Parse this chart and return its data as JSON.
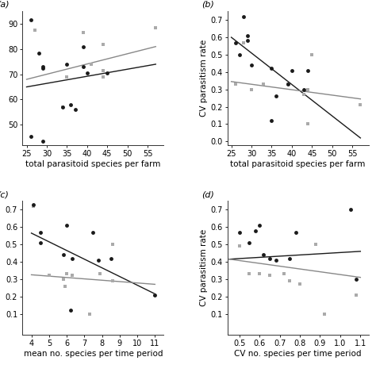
{
  "panel_a": {
    "label": "(a)",
    "black_dots": [
      [
        26,
        45.5
      ],
      [
        26,
        91.5
      ],
      [
        28,
        78.5
      ],
      [
        29,
        43.5
      ],
      [
        29,
        72.5
      ],
      [
        29,
        73.0
      ],
      [
        34,
        57.0
      ],
      [
        35,
        74.0
      ],
      [
        36,
        58.0
      ],
      [
        37,
        56.0
      ],
      [
        39,
        81.0
      ],
      [
        39,
        73.0
      ],
      [
        40,
        70.5
      ],
      [
        45,
        70.5
      ]
    ],
    "gray_squares": [
      [
        27,
        87.5
      ],
      [
        34,
        57.0
      ],
      [
        35,
        69.0
      ],
      [
        39,
        86.5
      ],
      [
        41,
        74.0
      ],
      [
        44,
        82.0
      ],
      [
        44,
        71.5
      ],
      [
        44,
        69.0
      ],
      [
        57,
        88.5
      ]
    ],
    "black_line": [
      [
        25,
        65.0
      ],
      [
        57,
        74.0
      ]
    ],
    "gray_line": [
      [
        25,
        68.0
      ],
      [
        57,
        81.0
      ]
    ],
    "xlabel": "total parasitoid species per farm",
    "ylabel": "",
    "xlim": [
      24,
      59
    ],
    "ylim": [
      42,
      95
    ],
    "xticks": [
      25,
      30,
      35,
      40,
      45,
      50,
      55
    ],
    "yticks": [
      50,
      60,
      70,
      80,
      90
    ]
  },
  "panel_b": {
    "label": "(b)",
    "black_dots": [
      [
        26,
        0.57
      ],
      [
        27,
        0.5
      ],
      [
        28,
        0.72
      ],
      [
        29,
        0.61
      ],
      [
        29,
        0.58
      ],
      [
        30,
        0.44
      ],
      [
        35,
        0.42
      ],
      [
        36,
        0.26
      ],
      [
        39,
        0.33
      ],
      [
        40,
        0.41
      ],
      [
        43,
        0.3
      ],
      [
        44,
        0.41
      ],
      [
        35,
        0.12
      ]
    ],
    "gray_squares": [
      [
        26,
        0.33
      ],
      [
        28,
        0.57
      ],
      [
        30,
        0.3
      ],
      [
        33,
        0.33
      ],
      [
        39,
        0.33
      ],
      [
        43,
        0.27
      ],
      [
        44,
        0.3
      ],
      [
        45,
        0.5
      ],
      [
        44,
        0.1
      ],
      [
        57,
        0.21
      ]
    ],
    "black_line": [
      [
        25,
        0.6
      ],
      [
        57,
        0.02
      ]
    ],
    "gray_line": [
      [
        25,
        0.345
      ],
      [
        57,
        0.245
      ]
    ],
    "xlabel": "total parasitoid species per farm",
    "ylabel": "CV parasitism rate",
    "xlim": [
      24,
      59
    ],
    "ylim": [
      -0.02,
      0.75
    ],
    "xticks": [
      25,
      30,
      35,
      40,
      45,
      50,
      55
    ],
    "yticks": [
      0.0,
      0.1,
      0.2,
      0.3,
      0.4,
      0.5,
      0.6,
      0.7
    ]
  },
  "panel_c": {
    "label": "(c)",
    "black_dots": [
      [
        4.1,
        0.73
      ],
      [
        4.5,
        0.57
      ],
      [
        4.5,
        0.51
      ],
      [
        5.8,
        0.44
      ],
      [
        6.0,
        0.61
      ],
      [
        6.2,
        0.12
      ],
      [
        6.3,
        0.42
      ],
      [
        7.5,
        0.57
      ],
      [
        7.8,
        0.41
      ],
      [
        8.5,
        0.42
      ],
      [
        11.0,
        0.21
      ]
    ],
    "gray_squares": [
      [
        4.1,
        0.72
      ],
      [
        5.0,
        0.32
      ],
      [
        5.8,
        0.3
      ],
      [
        5.9,
        0.26
      ],
      [
        6.0,
        0.33
      ],
      [
        6.3,
        0.32
      ],
      [
        7.3,
        0.1
      ],
      [
        7.9,
        0.33
      ],
      [
        8.6,
        0.5
      ],
      [
        8.6,
        0.29
      ],
      [
        11.0,
        0.21
      ]
    ],
    "black_line": [
      [
        4,
        0.565
      ],
      [
        11,
        0.215
      ]
    ],
    "gray_line": [
      [
        4,
        0.325
      ],
      [
        11,
        0.27
      ]
    ],
    "xlabel": "mean no. species per time period",
    "ylabel": "",
    "xlim": [
      3.5,
      11.5
    ],
    "ylim": [
      -0.02,
      0.75
    ],
    "xticks": [
      4,
      5,
      6,
      7,
      8,
      9,
      10,
      11
    ],
    "yticks": [
      0.1,
      0.2,
      0.3,
      0.4,
      0.5,
      0.6,
      0.7
    ]
  },
  "panel_d": {
    "label": "(d)",
    "black_dots": [
      [
        0.5,
        0.57
      ],
      [
        0.55,
        0.51
      ],
      [
        0.58,
        0.58
      ],
      [
        0.6,
        0.61
      ],
      [
        0.62,
        0.44
      ],
      [
        0.65,
        0.42
      ],
      [
        0.68,
        0.41
      ],
      [
        0.75,
        0.42
      ],
      [
        0.78,
        0.57
      ],
      [
        1.05,
        0.7
      ],
      [
        1.08,
        0.3
      ]
    ],
    "gray_squares": [
      [
        0.5,
        0.49
      ],
      [
        0.55,
        0.33
      ],
      [
        0.6,
        0.33
      ],
      [
        0.65,
        0.32
      ],
      [
        0.72,
        0.33
      ],
      [
        0.75,
        0.29
      ],
      [
        0.8,
        0.27
      ],
      [
        0.88,
        0.5
      ],
      [
        0.92,
        0.1
      ],
      [
        1.08,
        0.21
      ]
    ],
    "black_line": [
      [
        0.45,
        0.415
      ],
      [
        1.1,
        0.46
      ]
    ],
    "gray_line": [
      [
        0.45,
        0.415
      ],
      [
        1.1,
        0.31
      ]
    ],
    "xlabel": "CV no. species per time period",
    "ylabel": "CV parasitism rate",
    "xlim": [
      0.44,
      1.14
    ],
    "ylim": [
      -0.02,
      0.75
    ],
    "xticks": [
      0.5,
      0.6,
      0.7,
      0.8,
      0.9,
      1.0,
      1.1
    ],
    "yticks": [
      0.1,
      0.2,
      0.3,
      0.4,
      0.5,
      0.6,
      0.7
    ]
  },
  "dot_color": "#1a1a1a",
  "square_color": "#aaaaaa",
  "black_line_color": "#1a1a1a",
  "gray_line_color": "#888888",
  "label_fontsize": 8,
  "tick_fontsize": 7,
  "axis_label_fontsize": 7.5
}
